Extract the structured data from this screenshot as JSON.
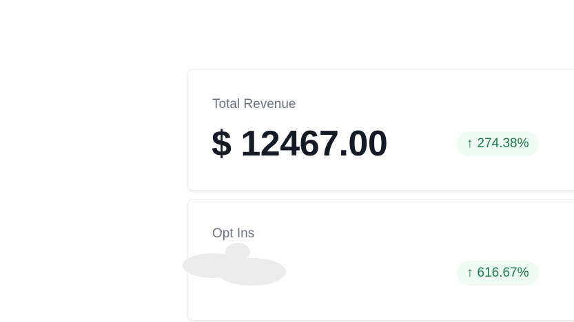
{
  "cards": [
    {
      "label": "Total Revenue",
      "value": "$ 12467.00",
      "change": "274.38%",
      "trend_icon": "arrow-up-icon"
    },
    {
      "label": "Opt Ins",
      "change": "616.67%",
      "trend_icon": "arrow-up-icon"
    }
  ],
  "colors": {
    "positive": "#1a7a48",
    "badge_bg": "#effcf3",
    "value": "#141a26",
    "label": "#6b7280"
  }
}
